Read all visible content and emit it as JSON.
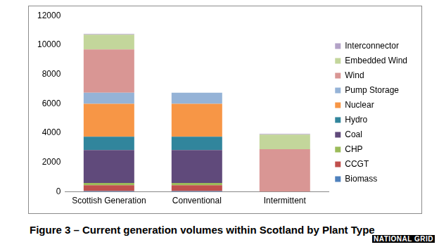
{
  "chart_data": {
    "type": "bar",
    "title": "Figure 3 – Current generation volumes within Scotland by Plant Type",
    "annotations": [
      "NATIONAL GRID"
    ],
    "categories": [
      "Scottish Generation",
      "Conventional",
      "Intermittent"
    ],
    "series": [
      {
        "name": "Biomass",
        "color": "#4f81bd",
        "values": [
          50,
          50,
          0
        ]
      },
      {
        "name": "CCGT",
        "color": "#c0504d",
        "values": [
          400,
          400,
          0
        ]
      },
      {
        "name": "CHP",
        "color": "#9bbb59",
        "values": [
          150,
          150,
          0
        ]
      },
      {
        "name": "Coal",
        "color": "#604a7b",
        "values": [
          2250,
          2250,
          0
        ]
      },
      {
        "name": "Hydro",
        "color": "#31859c",
        "values": [
          900,
          900,
          0
        ]
      },
      {
        "name": "Nuclear",
        "color": "#f79646",
        "values": [
          2250,
          2250,
          0
        ]
      },
      {
        "name": "Pump Storage",
        "color": "#95b3d7",
        "values": [
          750,
          750,
          0
        ]
      },
      {
        "name": "Wind",
        "color": "#d99694",
        "values": [
          2950,
          0,
          2900
        ]
      },
      {
        "name": "Embedded Wind",
        "color": "#c3d69b",
        "values": [
          1000,
          0,
          1000
        ]
      },
      {
        "name": "Interconnector",
        "color": "#b3a2c7",
        "values": [
          50,
          0,
          50
        ]
      }
    ],
    "ylim": [
      0,
      12000
    ],
    "yticks": [
      0,
      2000,
      4000,
      6000,
      8000,
      10000,
      12000
    ],
    "stacked": true,
    "legend": "right",
    "grid": false
  }
}
